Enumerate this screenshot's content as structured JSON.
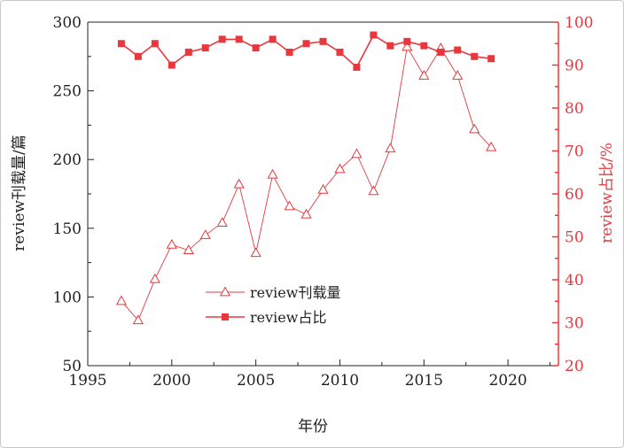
{
  "chart_data": {
    "type": "line",
    "x": [
      1997,
      1998,
      1999,
      2000,
      2001,
      2002,
      2003,
      2004,
      2005,
      2006,
      2007,
      2008,
      2009,
      2010,
      2011,
      2012,
      2013,
      2014,
      2015,
      2016,
      2017,
      2018,
      2019
    ],
    "series": [
      {
        "name": "review刊载量",
        "axis": "left",
        "marker": "open-triangle",
        "color": "#e8383d",
        "values": [
          97,
          83,
          113,
          138,
          134,
          145,
          154,
          182,
          132,
          189,
          166,
          160,
          178,
          193,
          204,
          177,
          208,
          282,
          261,
          281,
          261,
          222,
          209
        ]
      },
      {
        "name": "review占比",
        "axis": "right",
        "marker": "filled-square",
        "color": "#e8383d",
        "values": [
          95,
          92,
          95,
          90,
          93,
          94,
          96,
          96,
          94,
          96,
          93,
          95,
          95.5,
          93,
          89.5,
          97,
          94.5,
          95.5,
          94.5,
          93,
          93.5,
          92,
          91.5
        ]
      }
    ],
    "xlabel": "年份",
    "ylabel_left": "review刊载量/篇",
    "ylabel_right": "review占比/%",
    "xlim": [
      1995,
      2023
    ],
    "ylim_left": [
      50,
      300
    ],
    "ylim_right": [
      20,
      100
    ],
    "xticks": [
      1995,
      2000,
      2005,
      2010,
      2015,
      2020
    ],
    "yticks_left": [
      50,
      100,
      150,
      200,
      250,
      300
    ],
    "yticks_right": [
      20,
      30,
      40,
      50,
      60,
      70,
      80,
      90,
      100
    ],
    "right_axis_color": "#e8383d",
    "left_axis_color": "#222222",
    "grid": false,
    "legend_position": "lower-center"
  }
}
